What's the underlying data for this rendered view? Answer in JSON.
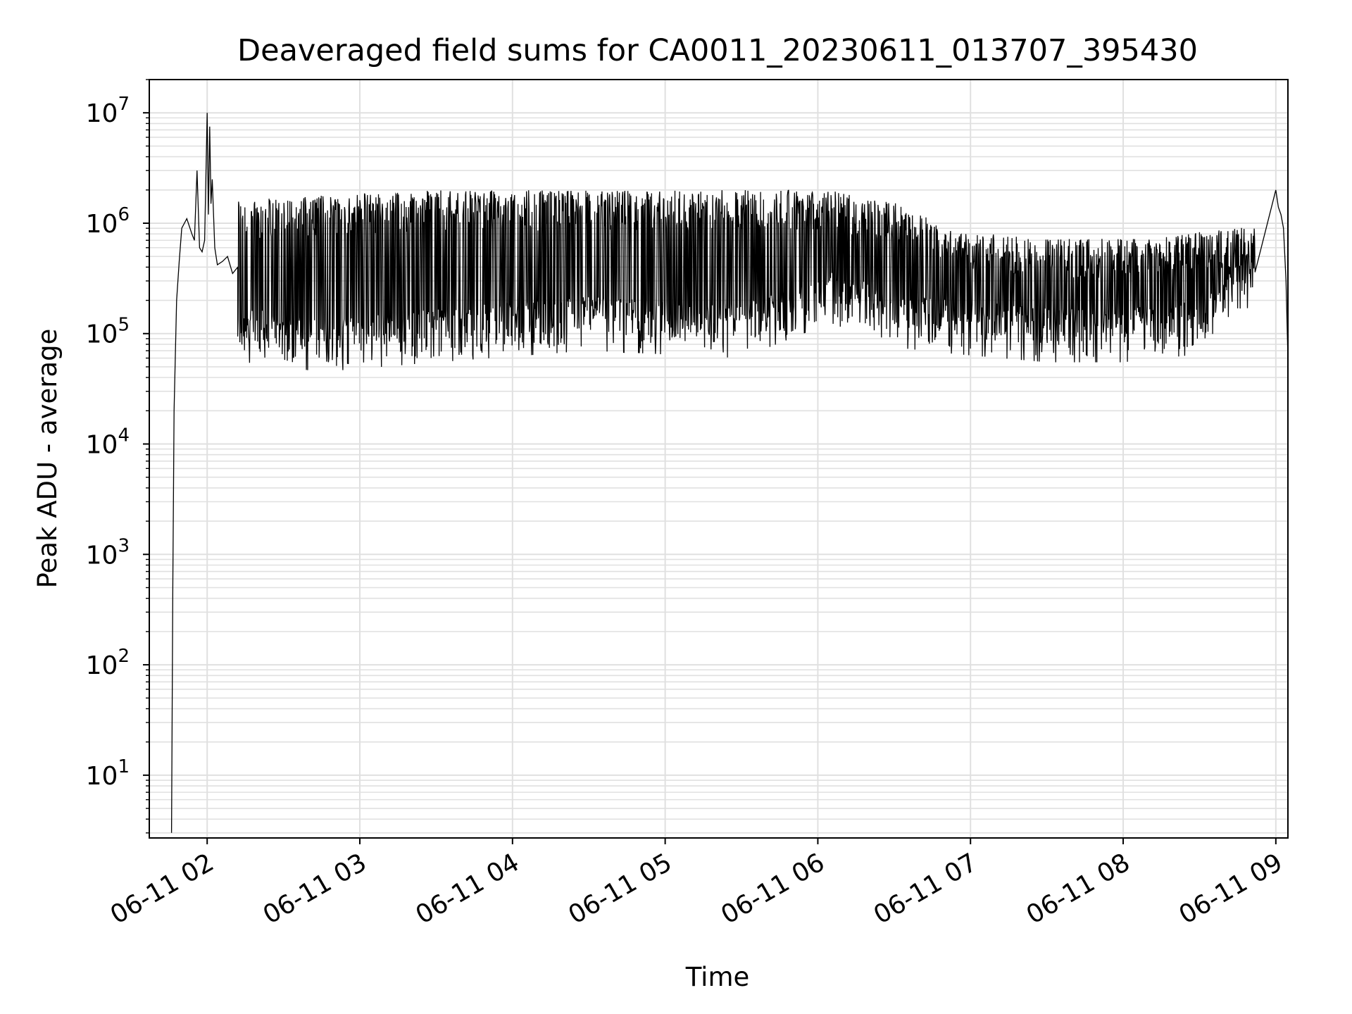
{
  "chart_data": {
    "type": "line",
    "title": "Deaveraged field sums for CA0011_20230611_013707_395430",
    "xlabel": "Time",
    "ylabel": "Peak ADU - average",
    "yscale": "log",
    "ylim": [
      2.7,
      20000000
    ],
    "xlim": [
      "06-11 01:37:15",
      "06-11 09:04:45"
    ],
    "grid": true,
    "grid_minor": true,
    "line_color": "#000000",
    "grid_color": "#e0e0e0",
    "x_ticks": [
      {
        "value": "06-11 02:00",
        "label": "06-11 02"
      },
      {
        "value": "06-11 03:00",
        "label": "06-11 03"
      },
      {
        "value": "06-11 04:00",
        "label": "06-11 04"
      },
      {
        "value": "06-11 05:00",
        "label": "06-11 05"
      },
      {
        "value": "06-11 06:00",
        "label": "06-11 06"
      },
      {
        "value": "06-11 07:00",
        "label": "06-11 07"
      },
      {
        "value": "06-11 08:00",
        "label": "06-11 08"
      },
      {
        "value": "06-11 09:00",
        "label": "06-11 09"
      }
    ],
    "y_ticks": [
      {
        "value": 10,
        "base": "10",
        "exp": "1"
      },
      {
        "value": 100,
        "base": "10",
        "exp": "2"
      },
      {
        "value": 1000,
        "base": "10",
        "exp": "3"
      },
      {
        "value": 10000,
        "base": "10",
        "exp": "4"
      },
      {
        "value": 100000,
        "base": "10",
        "exp": "5"
      },
      {
        "value": 1000000,
        "base": "10",
        "exp": "6"
      },
      {
        "value": 10000000,
        "base": "10",
        "exp": "7"
      }
    ],
    "series": [
      {
        "x": [
          "06-11 01:46",
          "06-11 01:46:30",
          "06-11 01:47",
          "06-11 01:48",
          "06-11 01:49",
          "06-11 01:50",
          "06-11 01:52",
          "06-11 01:54",
          "06-11 01:55",
          "06-11 01:56",
          "06-11 01:57",
          "06-11 01:58",
          "06-11 01:59",
          "06-11 02:00",
          "06-11 02:00:30",
          "06-11 02:01",
          "06-11 02:01:30",
          "06-11 02:02",
          "06-11 02:03",
          "06-11 02:04",
          "06-11 02:06",
          "06-11 02:08",
          "06-11 02:10",
          "06-11 02:12",
          "06-11 09:00",
          "06-11 09:01",
          "06-11 09:02",
          "06-11 09:03",
          "06-11 09:04",
          "06-11 09:04:45"
        ],
        "y": [
          3,
          500,
          20000,
          200000,
          450000,
          900000,
          1100000,
          800000,
          700000,
          3000000,
          600000,
          550000,
          700000,
          10000000,
          1200000,
          7500000,
          1500000,
          2500000,
          600000,
          420000,
          450000,
          500000,
          350000,
          400000,
          2000000,
          1400000,
          1200000,
          900000,
          300000,
          60000
        ]
      }
    ],
    "dense_band": {
      "start": "06-11 02:12",
      "end": "06-11 08:52",
      "spikes_per_hour": 180,
      "levels": [
        {
          "time": "06-11 02:15",
          "low": 110000,
          "high": 1600000
        },
        {
          "time": "06-11 02:45",
          "low": 90000,
          "high": 1700000
        },
        {
          "time": "06-11 03:30",
          "low": 110000,
          "high": 1900000
        },
        {
          "time": "06-11 04:30",
          "low": 140000,
          "high": 1900000
        },
        {
          "time": "06-11 05:30",
          "low": 120000,
          "high": 1900000
        },
        {
          "time": "06-11 06:05",
          "low": 250000,
          "high": 1900000
        },
        {
          "time": "06-11 06:30",
          "low": 150000,
          "high": 1500000
        },
        {
          "time": "06-11 06:55",
          "low": 130000,
          "high": 800000
        },
        {
          "time": "06-11 07:30",
          "low": 110000,
          "high": 700000
        },
        {
          "time": "06-11 08:00",
          "low": 110000,
          "high": 700000
        },
        {
          "time": "06-11 08:30",
          "low": 130000,
          "high": 800000
        },
        {
          "time": "06-11 08:52",
          "low": 400000,
          "high": 900000
        }
      ]
    }
  }
}
